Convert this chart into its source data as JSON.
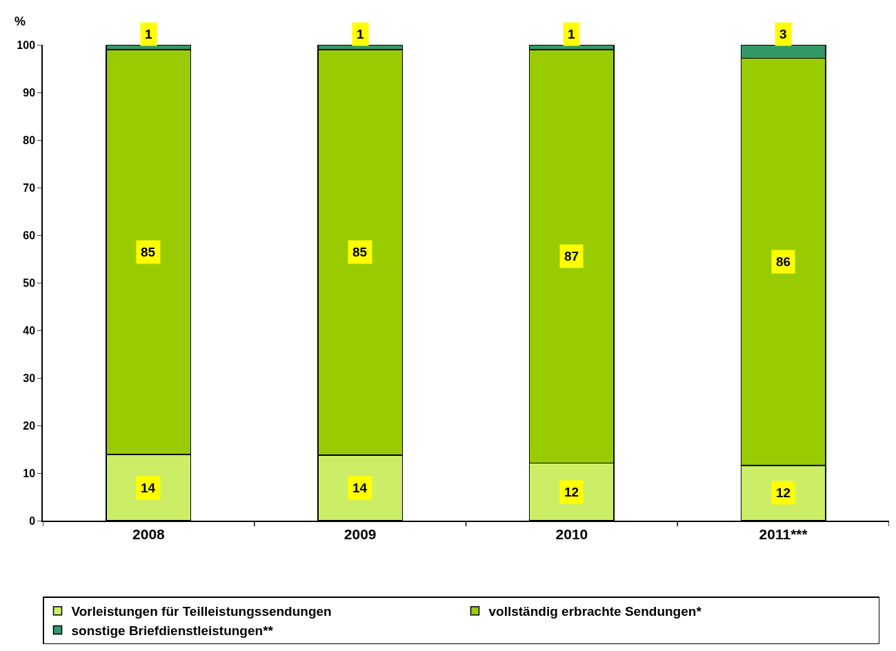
{
  "chart_data": {
    "type": "bar",
    "stacked": true,
    "ylabel": "%",
    "categories": [
      "2008",
      "2009",
      "2010",
      "2011***"
    ],
    "series": [
      {
        "name": "Vorleistungen für Teilleistungssendungen",
        "color": "#ccee66",
        "values": [
          13.9,
          13.8,
          12.1,
          11.6
        ],
        "value_labels": [
          "14",
          "14",
          "12",
          "12"
        ]
      },
      {
        "name": "vollständig erbrachte Sendungen*",
        "color": "#99cc00",
        "values": [
          85.1,
          85.2,
          86.9,
          85.6
        ],
        "value_labels": [
          "85",
          "85",
          "87",
          "86"
        ]
      },
      {
        "name": "sonstige Briefdienstleistungen**",
        "color": "#339966",
        "values": [
          1.0,
          1.0,
          1.0,
          2.8
        ],
        "value_labels": [
          "1",
          "1",
          "1",
          "3"
        ]
      }
    ],
    "ylim": [
      0,
      100
    ],
    "yticks": [
      0,
      10,
      20,
      30,
      40,
      50,
      60,
      70,
      80,
      90,
      100
    ],
    "legend": "bottom"
  }
}
